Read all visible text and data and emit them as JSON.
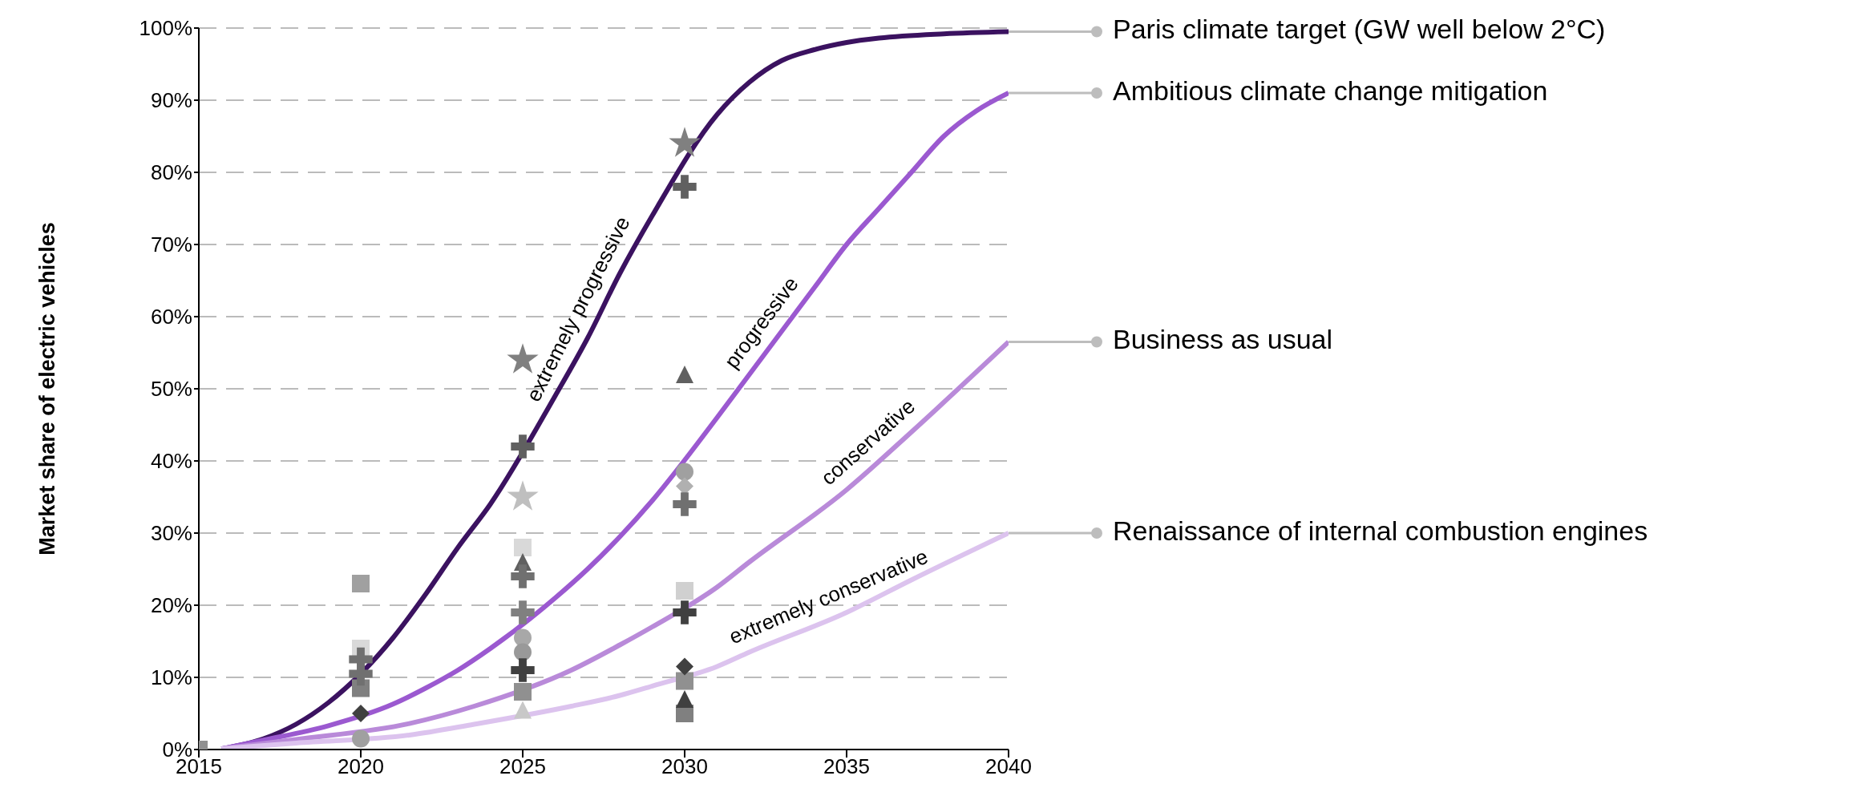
{
  "chart_data": {
    "type": "line",
    "ylabel": "Market share of electric vehicles",
    "xlim": [
      2015,
      2040
    ],
    "xticks": [
      2015,
      2020,
      2025,
      2030,
      2035,
      2040
    ],
    "ylim": [
      0,
      100
    ],
    "yticks": [
      {
        "value": 0,
        "label": "0%"
      },
      {
        "value": 10,
        "label": "10%"
      },
      {
        "value": 20,
        "label": "20%"
      },
      {
        "value": 30,
        "label": "30%"
      },
      {
        "value": 40,
        "label": "40%"
      },
      {
        "value": 50,
        "label": "50%"
      },
      {
        "value": 60,
        "label": "60%"
      },
      {
        "value": 70,
        "label": "70%"
      },
      {
        "value": 80,
        "label": "80%"
      },
      {
        "value": 90,
        "label": "90%"
      },
      {
        "value": 100,
        "label": "100%"
      }
    ],
    "grid": "y",
    "series": [
      {
        "type": "scatter",
        "marker": "square",
        "x": [
          2015,
          2020,
          2020,
          2020,
          2025,
          2025,
          2030,
          2030,
          2030
        ],
        "values": [
          0,
          8.5,
          14,
          23,
          8,
          28,
          22,
          9.5,
          5
        ],
        "colors": [
          "#909090",
          "#808080",
          "#d9d9d9",
          "#a0a0a0",
          "#909090",
          "#d9d9d9",
          "#d0d0d0",
          "#909090",
          "#808080"
        ]
      },
      {
        "type": "scatter",
        "marker": "circle",
        "x": [
          2020,
          2025,
          2025,
          2030
        ],
        "values": [
          1.5,
          15.5,
          13.5,
          38.5
        ],
        "colors": [
          "#a0a0a0",
          "#a8a8a8",
          "#999999",
          "#a0a0a0"
        ]
      },
      {
        "type": "scatter",
        "marker": "triangle",
        "x": [
          2025,
          2025,
          2030,
          2030
        ],
        "values": [
          26,
          5.5,
          52,
          7
        ],
        "colors": [
          "#606060",
          "#c8c8c8",
          "#606060",
          "#404040"
        ]
      },
      {
        "type": "scatter",
        "marker": "diamond",
        "x": [
          2020,
          2030,
          2030
        ],
        "values": [
          5,
          36.5,
          11.5
        ],
        "colors": [
          "#404040",
          "#b0b0b0",
          "#404040"
        ]
      },
      {
        "type": "scatter",
        "marker": "cross",
        "x": [
          2020,
          2020,
          2025,
          2025,
          2025,
          2025,
          2030,
          2030,
          2030
        ],
        "values": [
          12.5,
          10.5,
          42,
          24,
          19,
          11,
          78,
          34,
          19
        ],
        "colors": [
          "#707070",
          "#707070",
          "#606060",
          "#707070",
          "#808080",
          "#404040",
          "#606060",
          "#707070",
          "#404040"
        ]
      },
      {
        "type": "scatter",
        "marker": "star",
        "x": [
          2025,
          2025,
          2030
        ],
        "values": [
          54,
          35,
          84
        ],
        "colors": [
          "#808080",
          "#bfbfbf",
          "#808080"
        ]
      },
      {
        "name": "extremely progressive",
        "color": "#3b1260",
        "x": [
          2015.7,
          2017,
          2018,
          2019,
          2021,
          2022,
          2023,
          2024,
          2026,
          2027,
          2028,
          2029,
          2031,
          2032,
          2033,
          2034,
          2035,
          2036,
          2038,
          2040
        ],
        "values": [
          0.1,
          1.5,
          3.5,
          6.5,
          15.5,
          21.5,
          28,
          34,
          49,
          57,
          66,
          74,
          88,
          92.5,
          95.5,
          97,
          98,
          98.6,
          99.2,
          99.5
        ]
      },
      {
        "name": "progressive",
        "color": "#9b59d0",
        "x": [
          2015.7,
          2017,
          2019,
          2021,
          2022,
          2023,
          2024,
          2026,
          2027,
          2028,
          2029,
          2031,
          2032,
          2033,
          2034,
          2035,
          2036,
          2037,
          2038,
          2039,
          2040
        ],
        "values": [
          0.1,
          1.3,
          3.3,
          6.3,
          8.5,
          11,
          14,
          21,
          25,
          29.5,
          34.5,
          46,
          52,
          58,
          64,
          70,
          75,
          80,
          85,
          88.5,
          91
        ]
      },
      {
        "name": "conservative",
        "color": "#b98ad9",
        "x": [
          2015.7,
          2018,
          2021.5,
          2023.5,
          2026.5,
          2028,
          2029,
          2031,
          2032,
          2035,
          2037,
          2040
        ],
        "values": [
          0.1,
          1.4,
          3.6,
          6,
          11,
          14.5,
          17,
          22.5,
          26,
          36,
          44,
          56.5
        ]
      },
      {
        "name": "extremely conservative",
        "color": "#dcc3ee",
        "x": [
          2015.7,
          2018,
          2021.5,
          2023.5,
          2026.5,
          2028,
          2029,
          2031,
          2032,
          2035,
          2037,
          2040
        ],
        "values": [
          0.1,
          0.9,
          2,
          3.5,
          6,
          7.5,
          8.8,
          11.5,
          13.5,
          19,
          23.5,
          30
        ]
      }
    ],
    "annotations": [
      "Paris climate target (GW well below 2°C)",
      "Ambitious climate change mitigation",
      "Business as usual",
      "Renaissance of internal combustion engines"
    ]
  }
}
